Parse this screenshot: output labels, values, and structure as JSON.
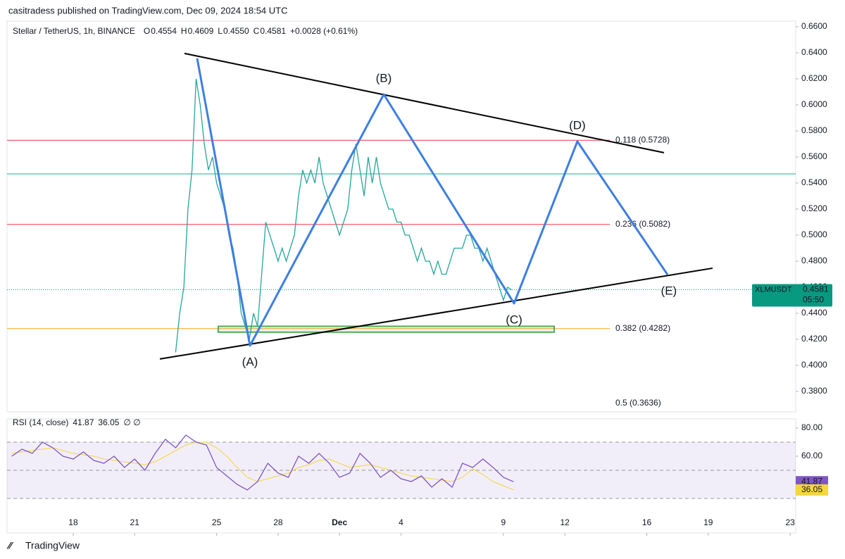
{
  "header": {
    "publisher": "casitradess published on TradingView.com, Dec 09, 2024 18:54 UTC",
    "symbol": "Stellar / TetherUS, 1h, BINANCE",
    "ohlc": [
      {
        "key": "O",
        "value": "0.4554"
      },
      {
        "key": "H",
        "value": "0.4609"
      },
      {
        "key": "L",
        "value": "0.4550"
      },
      {
        "key": "C",
        "value": "0.4581"
      }
    ],
    "change": "+0.0028 (+0.61%)"
  },
  "chart_data": [
    {
      "type": "line",
      "name": "price",
      "x": [
        23.0,
        23.2,
        23.4,
        23.6,
        23.8,
        24.0,
        24.2,
        24.4,
        24.6,
        24.8,
        25.0,
        25.2,
        25.4,
        25.6,
        25.8,
        26.0,
        26.2,
        26.4,
        26.6,
        26.8,
        27.0,
        27.2,
        27.4,
        27.6,
        27.8,
        28.0,
        28.2,
        28.4,
        28.6,
        28.8,
        29.0,
        29.2,
        29.4,
        29.6,
        29.8,
        30.0,
        30.2,
        30.4,
        30.6,
        30.8,
        31.0,
        31.2,
        31.4,
        31.6,
        31.8,
        32.0,
        32.2,
        32.4,
        32.6,
        32.8,
        33.0,
        33.2,
        33.4,
        33.6,
        33.8,
        34.0,
        34.2,
        34.4,
        34.6,
        34.8,
        35.0,
        35.2,
        35.4,
        35.6,
        35.8,
        36.0,
        36.2,
        36.4,
        36.6,
        36.8,
        37.0,
        37.2,
        37.4,
        37.6,
        37.8,
        38.0,
        38.2,
        38.4,
        38.6,
        38.8,
        39.0,
        39.2,
        39.4
      ],
      "series": [
        {
          "name": "XLMUSDT",
          "color": "#26a69a",
          "values": [
            0.41,
            0.44,
            0.46,
            0.52,
            0.55,
            0.62,
            0.6,
            0.57,
            0.55,
            0.56,
            0.54,
            0.53,
            0.52,
            0.5,
            0.49,
            0.47,
            0.44,
            0.43,
            0.42,
            0.44,
            0.43,
            0.47,
            0.51,
            0.5,
            0.49,
            0.48,
            0.49,
            0.48,
            0.49,
            0.5,
            0.53,
            0.55,
            0.54,
            0.55,
            0.54,
            0.56,
            0.54,
            0.53,
            0.52,
            0.51,
            0.5,
            0.51,
            0.52,
            0.55,
            0.57,
            0.55,
            0.53,
            0.56,
            0.54,
            0.56,
            0.54,
            0.53,
            0.52,
            0.52,
            0.51,
            0.51,
            0.5,
            0.5,
            0.49,
            0.48,
            0.49,
            0.48,
            0.48,
            0.47,
            0.48,
            0.47,
            0.47,
            0.48,
            0.49,
            0.49,
            0.49,
            0.5,
            0.5,
            0.49,
            0.49,
            0.48,
            0.49,
            0.48,
            0.47,
            0.46,
            0.45,
            0.46,
            0.4581
          ]
        }
      ],
      "xlim": [
        14.77,
        53.27
      ],
      "xticks": [
        {
          "value": 18,
          "label": "18"
        },
        {
          "value": 21,
          "label": "21"
        },
        {
          "value": 25,
          "label": "25"
        },
        {
          "value": 28,
          "label": "28"
        },
        {
          "value": 31,
          "label": "Dec"
        },
        {
          "value": 34,
          "label": "4"
        },
        {
          "value": 39,
          "label": "9"
        },
        {
          "value": 42,
          "label": "12"
        },
        {
          "value": 46,
          "label": "16"
        },
        {
          "value": 49,
          "label": "19"
        },
        {
          "value": 53,
          "label": "23"
        }
      ],
      "ylim": [
        0.3643,
        0.6643
      ],
      "yticks": [
        {
          "value": 0.66,
          "label": "0.6600"
        },
        {
          "value": 0.64,
          "label": "0.6400"
        },
        {
          "value": 0.62,
          "label": "0.6200"
        },
        {
          "value": 0.6,
          "label": "0.6000"
        },
        {
          "value": 0.58,
          "label": "0.5800"
        },
        {
          "value": 0.56,
          "label": "0.5600"
        },
        {
          "value": 0.54,
          "label": "0.5400"
        },
        {
          "value": 0.52,
          "label": "0.5200"
        },
        {
          "value": 0.5,
          "label": "0.5000"
        },
        {
          "value": 0.48,
          "label": "0.4800"
        },
        {
          "value": 0.46,
          "label": "0.4600"
        },
        {
          "value": 0.44,
          "label": "0.4400"
        },
        {
          "value": 0.42,
          "label": "0.4200"
        },
        {
          "value": 0.4,
          "label": "0.4000"
        },
        {
          "value": 0.38,
          "label": "0.3800"
        }
      ],
      "trendlines": [
        {
          "x": [
            23.43,
            46.84
          ],
          "y": [
            0.6395,
            0.5633
          ]
        },
        {
          "x": [
            22.23,
            49.21
          ],
          "y": [
            0.4049,
            0.4746
          ]
        }
      ],
      "wave": {
        "color": "#3d7fe0",
        "labels": [
          "(A)",
          "(B)",
          "(C)",
          "(D)",
          "(E)"
        ],
        "x": [
          24.05,
          26.63,
          33.16,
          39.52,
          42.61,
          47.01
        ],
        "y": [
          0.6357,
          0.4151,
          0.6081,
          0.4476,
          0.5719,
          0.4697
        ]
      },
      "fib_levels": [
        {
          "label": "0.118 (0.5728)",
          "value": 0.5728,
          "color": "#f23645"
        },
        {
          "label": "0.236 (0.5082)",
          "value": 0.5082,
          "color": "#f23645"
        },
        {
          "label": "0.382 (0.4282)",
          "value": 0.4282,
          "color": "#f7a21b"
        },
        {
          "label": "0.5 (0.3636)",
          "value": 0.3636,
          "color": "#4caf50"
        }
      ],
      "hline": {
        "value": 0.547,
        "color": "#22ab94"
      },
      "zone": {
        "x": [
          25.08,
          41.48
        ],
        "y": [
          0.4255,
          0.43
        ],
        "color": "#4caf50"
      },
      "price_tag": {
        "symbol": "XLMUSDT",
        "value": 0.4581,
        "label": "0.4581",
        "countdown": "05:50"
      }
    },
    {
      "type": "line",
      "name": "rsi",
      "title": "RSI (14, close)",
      "extra": "∅ ∅",
      "x": [
        15.0,
        15.5,
        16.0,
        16.5,
        17.0,
        17.5,
        18.0,
        18.5,
        19.0,
        19.5,
        20.0,
        20.5,
        21.0,
        21.5,
        22.0,
        22.5,
        23.0,
        23.5,
        24.0,
        24.5,
        25.0,
        25.5,
        26.0,
        26.5,
        27.0,
        27.5,
        28.0,
        28.5,
        29.0,
        29.5,
        30.0,
        30.5,
        31.0,
        31.5,
        32.0,
        32.5,
        33.0,
        33.5,
        34.0,
        34.5,
        35.0,
        35.5,
        36.0,
        36.5,
        37.0,
        37.5,
        38.0,
        38.5,
        39.0,
        39.5
      ],
      "series": [
        {
          "name": "RSI",
          "color": "#7e57c2",
          "values": [
            60,
            65,
            62,
            70,
            66,
            60,
            58,
            63,
            57,
            55,
            60,
            52,
            58,
            50,
            62,
            72,
            66,
            75,
            70,
            68,
            52,
            46,
            40,
            36,
            42,
            55,
            48,
            45,
            60,
            55,
            62,
            55,
            45,
            48,
            62,
            55,
            45,
            50,
            44,
            42,
            46,
            38,
            44,
            38,
            55,
            52,
            58,
            52,
            45,
            41.87
          ]
        },
        {
          "name": "MA",
          "color": "#f5d63d",
          "values": [
            62,
            63,
            64,
            65,
            66,
            64,
            62,
            61,
            60,
            58,
            57,
            56,
            55,
            54,
            56,
            60,
            64,
            68,
            70,
            70,
            66,
            60,
            52,
            45,
            42,
            44,
            46,
            48,
            52,
            54,
            57,
            58,
            55,
            52,
            53,
            54,
            52,
            50,
            48,
            46,
            45,
            44,
            43,
            42,
            45,
            51,
            47,
            42,
            39,
            36.05
          ]
        }
      ],
      "xlim": [
        14.77,
        53.27
      ],
      "ylim": [
        17.5,
        86.5
      ],
      "yticks": [
        {
          "value": 80,
          "label": "80.00"
        },
        {
          "value": 60,
          "label": "60.00"
        }
      ],
      "bands": [
        70,
        50,
        30
      ]
    }
  ],
  "footer": {
    "brand": "TradingView"
  }
}
